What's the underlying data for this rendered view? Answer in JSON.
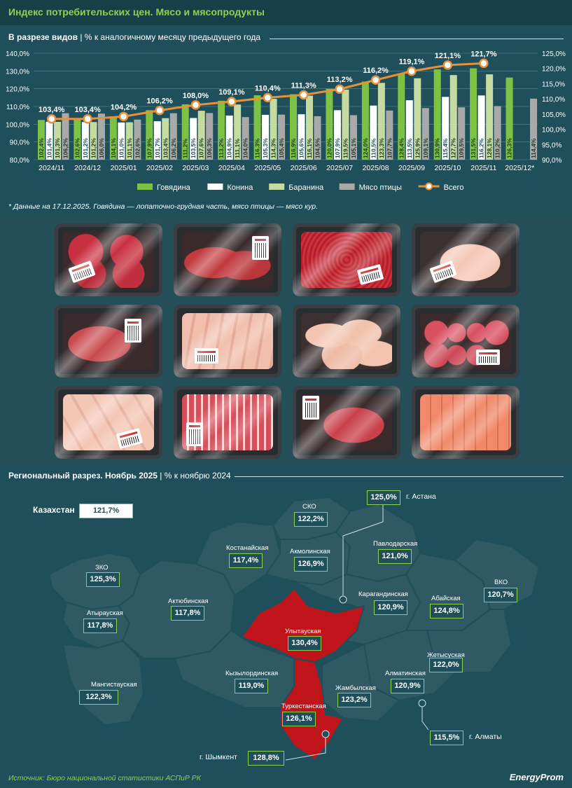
{
  "header": {
    "title": "Индекс потребительских цен. Мясо и мясопродукты"
  },
  "section1": {
    "title": "В разрезе видов",
    "subtitle": "| % к аналогичному месяцу предыдущего года"
  },
  "note": "* Данные на 17.12.2025. Говядина — лопаточно-грудная часть, мясо птицы — мясо кур.",
  "chart_data": {
    "type": "bar",
    "categories": [
      "2024/11",
      "2024/12",
      "2025/01",
      "2025/02",
      "2025/03",
      "2025/04",
      "2025/05",
      "2025/06",
      "2025/07",
      "2025/08",
      "2025/09",
      "2025/10",
      "2025/11",
      "2025/12*"
    ],
    "series": [
      {
        "name": "Говядина",
        "color": "#7dc242",
        "values": [
          102.4,
          102.6,
          104.1,
          107.9,
          111.2,
          113.2,
          116.3,
          116.9,
          120.0,
          124.0,
          128.4,
          130.9,
          131.5,
          126.3
        ],
        "labels": [
          "102,4%",
          "102,6%",
          "104,1%",
          "107,9%",
          "111,2%",
          "113,2%",
          "116,3%",
          "116,9%",
          "120,0%",
          "124,0%",
          "128,4%",
          "130,9%",
          "131,5%",
          "126,3%"
        ]
      },
      {
        "name": "Конина",
        "color": "#ffffff",
        "values": [
          101.4,
          101.2,
          101.0,
          101.7,
          103.5,
          104.9,
          105.3,
          105.6,
          107.9,
          110.5,
          113.5,
          115.4,
          116.2,
          null
        ],
        "labels": [
          "101,4%",
          "101,2%",
          "101,0%",
          "101,7%",
          "103,5%",
          "104,9%",
          "105,3%",
          "105,6%",
          "107,9%",
          "110,5%",
          "113,5%",
          "115,4%",
          "116,2%",
          ""
        ]
      },
      {
        "name": "Баранина",
        "color": "#c5dba0",
        "values": [
          101.3,
          101.2,
          101.1,
          103.4,
          107.6,
          111.1,
          114.3,
          116.1,
          119.5,
          123.3,
          125.9,
          127.7,
          128.1,
          null
        ],
        "labels": [
          "101,3%",
          "101,2%",
          "101,1%",
          "103,4%",
          "107,6%",
          "111,1%",
          "114,3%",
          "116,1%",
          "119,5%",
          "123,3%",
          "125,9%",
          "127,7%",
          "128,1%",
          ""
        ]
      },
      {
        "name": "Мясо птицы",
        "color": "#a9a9a9",
        "values": [
          106.2,
          106.0,
          102.6,
          106.2,
          106.3,
          104.0,
          105.4,
          104.5,
          105.1,
          107.7,
          109.1,
          109.5,
          110.2,
          114.4
        ],
        "labels": [
          "106,2%",
          "106,0%",
          "102,6%",
          "106,2%",
          "106,3%",
          "104,0%",
          "105,4%",
          "104,5%",
          "105,1%",
          "107,7%",
          "109,1%",
          "109,5%",
          "110,2%",
          "114,4%"
        ]
      }
    ],
    "line": {
      "name": "Всего",
      "color": "#e8913a",
      "values": [
        103.4,
        103.4,
        104.2,
        106.2,
        108.0,
        109.1,
        110.4,
        111.3,
        113.2,
        116.2,
        119.1,
        121.1,
        121.7,
        null
      ],
      "labels": [
        "103,4%",
        "103,4%",
        "104,2%",
        "106,2%",
        "108,0%",
        "109,1%",
        "110,4%",
        "111,3%",
        "113,2%",
        "116,2%",
        "119,1%",
        "121,1%",
        "121,7%",
        ""
      ]
    },
    "ylim_left": [
      80,
      140
    ],
    "yticks_left": [
      "80,0%",
      "90,0%",
      "100,0%",
      "110,0%",
      "120,0%",
      "130,0%",
      "140,0%"
    ],
    "ylim_right": [
      90,
      125
    ],
    "yticks_right": [
      "90,0%",
      "95,0%",
      "100,0%",
      "105,0%",
      "110,0%",
      "115,0%",
      "120,0%",
      "125,0%"
    ],
    "grid": true,
    "legend": "bottom"
  },
  "section2": {
    "title": "Региональный разрез. Ноябрь 2025",
    "subtitle": "| % к ноябрю 2024"
  },
  "map": {
    "kazakhstan": {
      "name": "Казахстан",
      "value": "121,7%"
    },
    "regions": [
      {
        "name": "СКО",
        "value": "122,2%"
      },
      {
        "name": "г. Астана",
        "value": "125,0%"
      },
      {
        "name": "Костанайская",
        "value": "117,4%"
      },
      {
        "name": "Акмолинская",
        "value": "126,9%"
      },
      {
        "name": "Павлодарская",
        "value": "121,0%"
      },
      {
        "name": "ЗКО",
        "value": "125,3%"
      },
      {
        "name": "ВКО",
        "value": "120,7%"
      },
      {
        "name": "Актюбинская",
        "value": "117,8%"
      },
      {
        "name": "Карагандинская",
        "value": "120,9%"
      },
      {
        "name": "Абайская",
        "value": "124,8%"
      },
      {
        "name": "Атырауская",
        "value": "117,8%"
      },
      {
        "name": "Улытауская",
        "value": "130,4%"
      },
      {
        "name": "Жетысуская",
        "value": "122,0%"
      },
      {
        "name": "Кызылординская",
        "value": "119,0%"
      },
      {
        "name": "Алматинская",
        "value": "120,9%"
      },
      {
        "name": "Мангистауская",
        "value": "122,3%"
      },
      {
        "name": "Жамбылская",
        "value": "123,2%"
      },
      {
        "name": "Туркестанская",
        "value": "126,1%"
      },
      {
        "name": "г. Алматы",
        "value": "115,5%"
      },
      {
        "name": "г. Шымкент",
        "value": "128,8%"
      }
    ]
  },
  "footer": {
    "source": "Источник: Бюро национальной статистики АСПиР РК",
    "brand": "EnergyProm"
  },
  "colors": {
    "background": "#1f4f5a",
    "accent": "#8ed24a",
    "highlight_region": "#c0141b",
    "region_fill": "#2f5a64"
  }
}
